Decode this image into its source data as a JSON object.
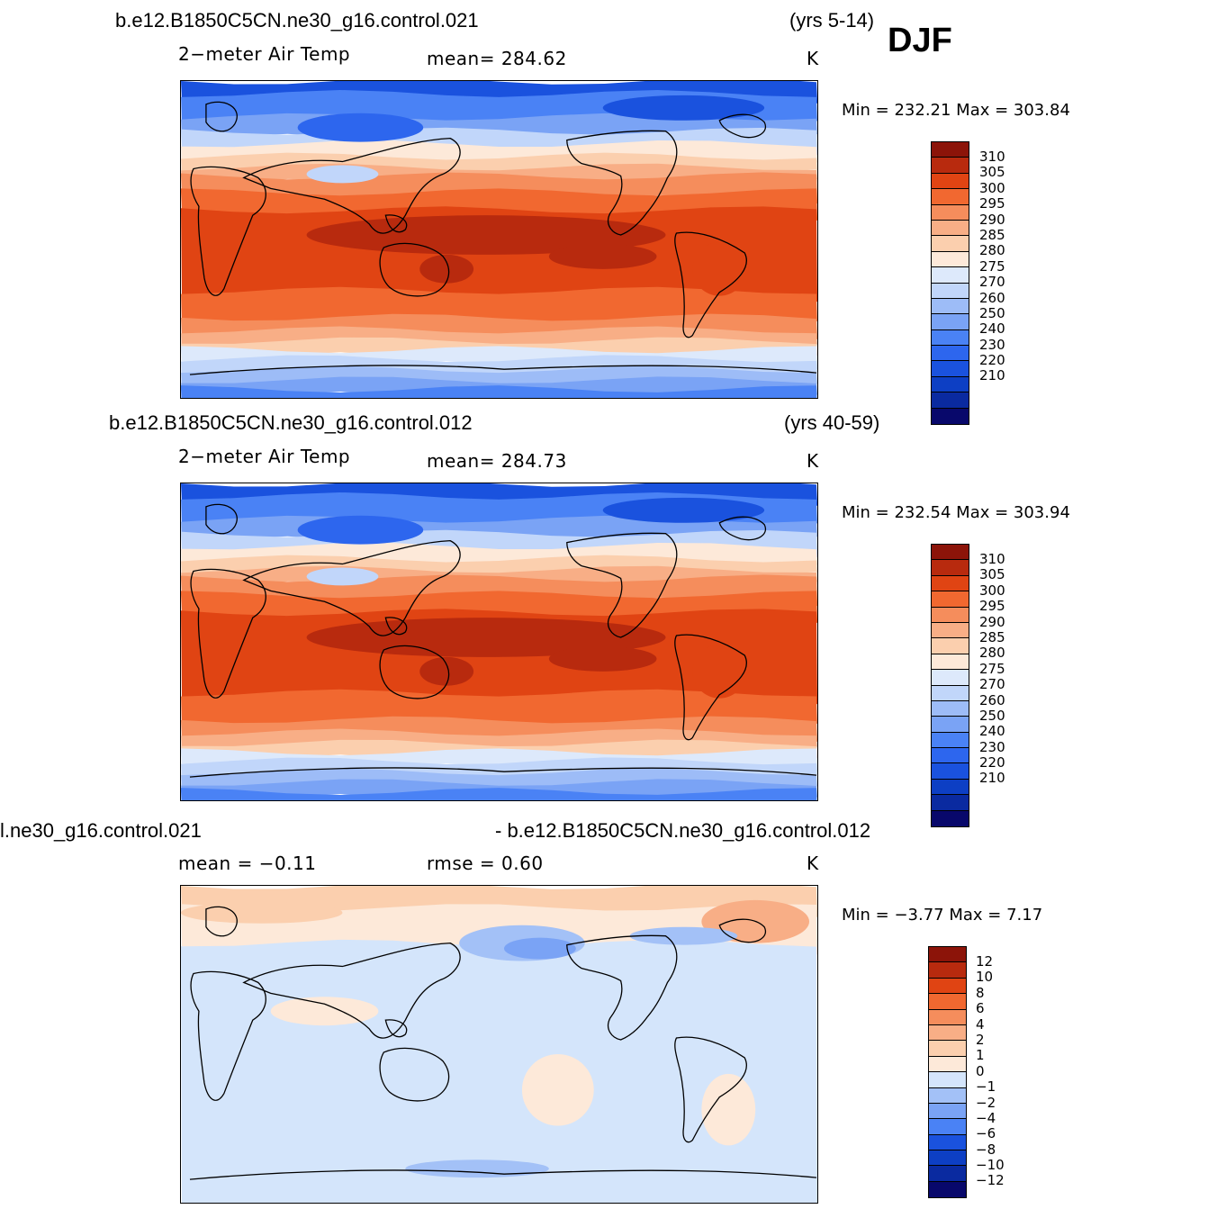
{
  "season": "DJF",
  "colors": {
    "temp": [
      "#08086b",
      "#0a2aa0",
      "#0d3fc4",
      "#1a52de",
      "#2d66ee",
      "#4a82f5",
      "#7aa3f5",
      "#9dbcf7",
      "#c1d6fa",
      "#dde9fb",
      "#fde9d9",
      "#fbcfae",
      "#f8ae86",
      "#f58d5c",
      "#f16830",
      "#e04413",
      "#b82a0e",
      "#8c1409"
    ],
    "diff": [
      "#08086b",
      "#0a2aa0",
      "#0d3fc4",
      "#1a52de",
      "#4a82f5",
      "#7aa3f5",
      "#a3c1f7",
      "#d4e5fb",
      "#fde9d9",
      "#fbcfae",
      "#f8ae86",
      "#f58d5c",
      "#f16830",
      "#e04413",
      "#b82a0e",
      "#8c1409"
    ],
    "coast": "#000000"
  },
  "panels": [
    {
      "case": "b.e12.B1850C5CN.ne30_g16.control.021",
      "years": "(yrs 5-14)",
      "variable": "2−meter  Air  Temp",
      "mean_label": "mean=  284.62",
      "units": "K",
      "minmax": "Min  =  232.21  Max  =  303.84",
      "levels": [
        "310",
        "305",
        "300",
        "295",
        "290",
        "285",
        "280",
        "275",
        "270",
        "260",
        "250",
        "240",
        "230",
        "220",
        "210"
      ]
    },
    {
      "case": "b.e12.B1850C5CN.ne30_g16.control.012",
      "years": "(yrs 40-59)",
      "variable": "2−meter  Air  Temp",
      "mean_label": "mean=  284.73",
      "units": "K",
      "minmax": "Min  =  232.54  Max  =  303.94",
      "levels": [
        "310",
        "305",
        "300",
        "295",
        "290",
        "285",
        "280",
        "275",
        "270",
        "260",
        "250",
        "240",
        "230",
        "220",
        "210"
      ]
    },
    {
      "case_left": "l.ne30_g16.control.021",
      "case_right": "- b.e12.B1850C5CN.ne30_g16.control.012",
      "mean_label": "mean  =   −0.11",
      "rmse_label": "rmse  =     0.60",
      "units": "K",
      "minmax": "Min  =    −3.77  Max  =      7.17",
      "levels": [
        "12",
        "10",
        "8",
        "6",
        "4",
        "2",
        "1",
        "0",
        "−1",
        "−2",
        "−4",
        "−6",
        "−8",
        "−10",
        "−12"
      ]
    }
  ]
}
